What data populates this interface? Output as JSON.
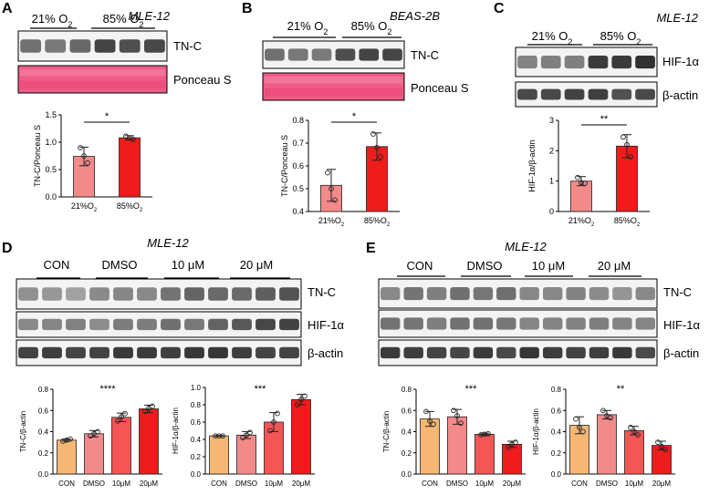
{
  "colors": {
    "light": "#f7b774",
    "pink": "#f28a8a",
    "mid": "#f45656",
    "red": "#ee1c1c",
    "ponceau": "#f05c86"
  },
  "panels": {
    "A": {
      "letter": "A",
      "cell_line": "MLE-12",
      "groups": [
        "21% O",
        "85% O"
      ],
      "group_sub": "2",
      "blots": [
        "TN-C",
        "Ponceau S"
      ],
      "chart": {
        "type": "bar",
        "ylabel": "TN-C/Ponceau S",
        "categories": [
          {
            "main": "21%O",
            "sub": "2"
          },
          {
            "main": "85%O",
            "sub": "2"
          }
        ],
        "values": [
          0.74,
          1.08
        ],
        "errors": [
          0.17,
          0.04
        ],
        "points": [
          [
            0.9,
            0.75,
            0.62
          ],
          [
            1.11,
            1.08,
            1.05
          ]
        ],
        "ylim": [
          0,
          1.5
        ],
        "ticks": [
          "0.0",
          "0.5",
          "1.0",
          "1.5"
        ],
        "significance": "*"
      }
    },
    "B": {
      "letter": "B",
      "cell_line": "BEAS-2B",
      "groups": [
        "21% O",
        "85% O"
      ],
      "group_sub": "2",
      "blots": [
        "TN-C",
        "Ponceau S"
      ],
      "chart": {
        "type": "bar",
        "ylabel": "TN-C/Ponceau S",
        "categories": [
          {
            "main": "21%O",
            "sub": "2"
          },
          {
            "main": "85%O",
            "sub": "2"
          }
        ],
        "values": [
          0.515,
          0.685
        ],
        "errors": [
          0.07,
          0.06
        ],
        "points": [
          [
            0.57,
            0.5,
            0.45
          ],
          [
            0.74,
            0.68,
            0.64
          ]
        ],
        "ylim": [
          0.4,
          0.8
        ],
        "ticks": [
          "0.4",
          "0.5",
          "0.6",
          "0.7",
          "0.8"
        ],
        "significance": "*"
      }
    },
    "C": {
      "letter": "C",
      "cell_line": "MLE-12",
      "groups": [
        "21% O",
        "85% O"
      ],
      "group_sub": "2",
      "blots": [
        "HIF-1α",
        "β-actin"
      ],
      "chart": {
        "type": "bar",
        "ylabel": "HIF-1α/β-actin",
        "categories": [
          {
            "main": "21%O",
            "sub": "2"
          },
          {
            "main": "85%O",
            "sub": "2"
          }
        ],
        "values": [
          1.0,
          2.15
        ],
        "errors": [
          0.15,
          0.38
        ],
        "points": [
          [
            1.12,
            0.95,
            0.93
          ],
          [
            2.45,
            2.2,
            1.8
          ]
        ],
        "ylim": [
          0,
          3
        ],
        "ticks": [
          "0",
          "1",
          "2",
          "3"
        ],
        "significance": "**"
      }
    },
    "D": {
      "letter": "D",
      "cell_line": "MLE-12",
      "groups": [
        "CON",
        "DMSO",
        "10 μM",
        "20 μM"
      ],
      "blots": [
        "TN-C",
        "HIF-1α",
        "β-actin"
      ],
      "charts": [
        {
          "type": "bar",
          "ylabel": "TN-C/β-actin",
          "categories": [
            "CON",
            "DMSO",
            "10μM",
            "20μM"
          ],
          "values": [
            0.32,
            0.38,
            0.535,
            0.615
          ],
          "errors": [
            0.01,
            0.03,
            0.04,
            0.035
          ],
          "points": [
            [
              0.31,
              0.32,
              0.33
            ],
            [
              0.36,
              0.38,
              0.4
            ],
            [
              0.5,
              0.54,
              0.57
            ],
            [
              0.59,
              0.62,
              0.64
            ]
          ],
          "ylim": [
            0,
            0.8
          ],
          "ticks": [
            "0.0",
            "0.2",
            "0.4",
            "0.6",
            "0.8"
          ],
          "significance": "****"
        },
        {
          "type": "bar",
          "ylabel": "HIF-1α/β-actin",
          "categories": [
            "CON",
            "DMSO",
            "10μM",
            "20μM"
          ],
          "values": [
            0.44,
            0.45,
            0.6,
            0.86
          ],
          "errors": [
            0.005,
            0.04,
            0.11,
            0.06
          ],
          "points": [
            [
              0.44,
              0.44,
              0.44
            ],
            [
              0.42,
              0.45,
              0.48
            ],
            [
              0.5,
              0.6,
              0.7
            ],
            [
              0.8,
              0.86,
              0.9
            ]
          ],
          "ylim": [
            0,
            1.0
          ],
          "ticks": [
            "0.0",
            "0.2",
            "0.4",
            "0.6",
            "0.8",
            "1.0"
          ],
          "significance": "***"
        }
      ]
    },
    "E": {
      "letter": "E",
      "cell_line": "MLE-12",
      "groups": [
        "CON",
        "DMSO",
        "10 μM",
        "20 μM"
      ],
      "blots": [
        "TN-C",
        "HIF-1α",
        "β-actin"
      ],
      "charts": [
        {
          "type": "bar",
          "ylabel": "TN-C/β-actin",
          "categories": [
            "CON",
            "DMSO",
            "10μM",
            "20μM"
          ],
          "values": [
            0.52,
            0.54,
            0.375,
            0.28
          ],
          "errors": [
            0.07,
            0.07,
            0.01,
            0.03
          ],
          "points": [
            [
              0.59,
              0.5,
              0.47
            ],
            [
              0.6,
              0.55,
              0.48
            ],
            [
              0.37,
              0.375,
              0.38
            ],
            [
              0.25,
              0.28,
              0.3
            ]
          ],
          "ylim": [
            0,
            0.8
          ],
          "ticks": [
            "0.0",
            "0.2",
            "0.4",
            "0.6",
            "0.8"
          ],
          "significance": "***"
        },
        {
          "type": "bar",
          "ylabel": "HIF-1α/β-actin",
          "categories": [
            "CON",
            "DMSO",
            "10μM",
            "20μM"
          ],
          "values": [
            0.46,
            0.56,
            0.41,
            0.27
          ],
          "errors": [
            0.08,
            0.04,
            0.04,
            0.04
          ],
          "points": [
            [
              0.52,
              0.44,
              0.4
            ],
            [
              0.6,
              0.55,
              0.53
            ],
            [
              0.44,
              0.4,
              0.37
            ],
            [
              0.3,
              0.26,
              0.23
            ]
          ],
          "ylim": [
            0,
            0.8
          ],
          "ticks": [
            "0.0",
            "0.2",
            "0.4",
            "0.6",
            "0.8"
          ],
          "significance": "**"
        }
      ]
    }
  },
  "chart_data": [
    {
      "panel": "A",
      "type": "bar",
      "title": "MLE-12",
      "ylabel": "TN-C/Ponceau S",
      "categories": [
        "21%O2",
        "85%O2"
      ],
      "values": [
        0.74,
        1.08
      ],
      "ylim": [
        0,
        1.5
      ]
    },
    {
      "panel": "B",
      "type": "bar",
      "title": "BEAS-2B",
      "ylabel": "TN-C/Ponceau S",
      "categories": [
        "21%O2",
        "85%O2"
      ],
      "values": [
        0.515,
        0.685
      ],
      "ylim": [
        0.4,
        0.8
      ]
    },
    {
      "panel": "C",
      "type": "bar",
      "title": "MLE-12",
      "ylabel": "HIF-1α/β-actin",
      "categories": [
        "21%O2",
        "85%O2"
      ],
      "values": [
        1.0,
        2.15
      ],
      "ylim": [
        0,
        3
      ]
    },
    {
      "panel": "D",
      "type": "bar",
      "title": "MLE-12",
      "ylabel": "TN-C/β-actin",
      "categories": [
        "CON",
        "DMSO",
        "10μM",
        "20μM"
      ],
      "values": [
        0.32,
        0.38,
        0.535,
        0.615
      ],
      "ylim": [
        0,
        0.8
      ]
    },
    {
      "panel": "D",
      "type": "bar",
      "title": "MLE-12",
      "ylabel": "HIF-1α/β-actin",
      "categories": [
        "CON",
        "DMSO",
        "10μM",
        "20μM"
      ],
      "values": [
        0.44,
        0.45,
        0.6,
        0.86
      ],
      "ylim": [
        0,
        1.0
      ]
    },
    {
      "panel": "E",
      "type": "bar",
      "title": "MLE-12",
      "ylabel": "TN-C/β-actin",
      "categories": [
        "CON",
        "DMSO",
        "10μM",
        "20μM"
      ],
      "values": [
        0.52,
        0.54,
        0.375,
        0.28
      ],
      "ylim": [
        0,
        0.8
      ]
    },
    {
      "panel": "E",
      "type": "bar",
      "title": "MLE-12",
      "ylabel": "HIF-1α/β-actin",
      "categories": [
        "CON",
        "DMSO",
        "10μM",
        "20μM"
      ],
      "values": [
        0.46,
        0.56,
        0.41,
        0.27
      ],
      "ylim": [
        0,
        0.8
      ]
    }
  ]
}
